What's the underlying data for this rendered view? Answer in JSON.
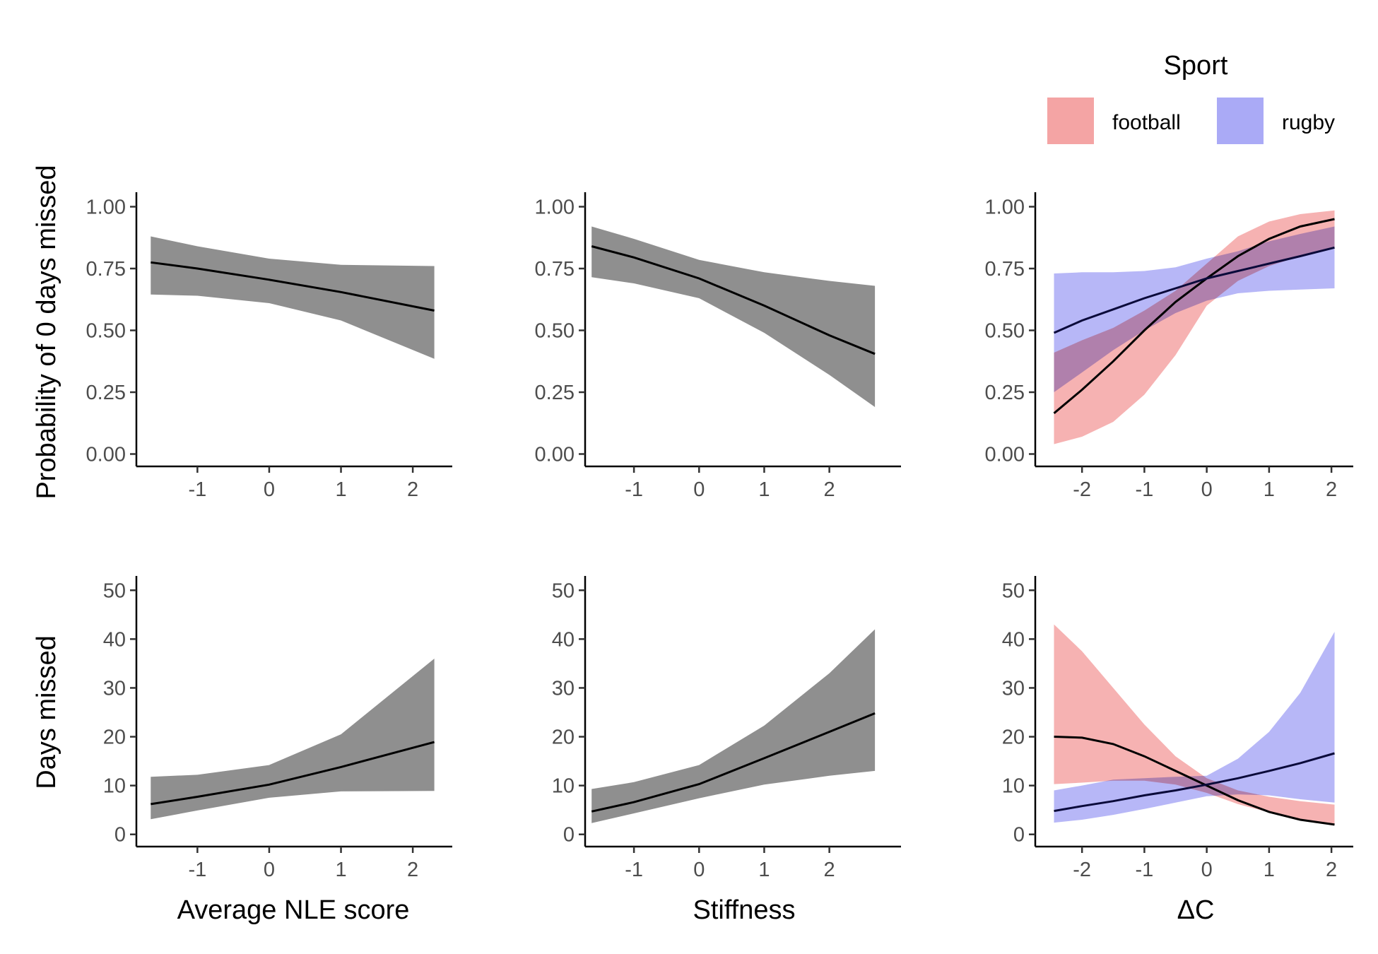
{
  "legend": {
    "title": "Sport",
    "items": [
      {
        "label": "football",
        "color": "#f08080"
      },
      {
        "label": "rugby",
        "color": "#7f7fff"
      }
    ]
  },
  "row_labels": [
    "Probability of 0 days missed",
    "Days missed"
  ],
  "col_labels": [
    "Average NLE score",
    "Stiffness",
    "ΔC"
  ],
  "colors": {
    "single_band": "#8f8f8f",
    "line": "#000000",
    "football_band": "#f4a4a4",
    "rugby_band": "#aaaaf6",
    "overlap": "#a36ec0"
  },
  "chart_data": [
    {
      "type": "line",
      "row": 0,
      "col": 0,
      "xlabel": "",
      "ylabel": "Probability of 0 days missed",
      "xlim": [
        -1.85,
        2.55
      ],
      "ylim": [
        -0.05,
        1.05
      ],
      "xticks": [
        -1,
        0,
        1,
        2
      ],
      "yticks": [
        0.0,
        0.25,
        0.5,
        0.75,
        1.0
      ],
      "ytick_labels": [
        "0.00",
        "0.25",
        "0.50",
        "0.75",
        "1.00"
      ],
      "series": [
        {
          "x": [
            -1.65,
            -1.0,
            0.0,
            1.0,
            2.3
          ],
          "y": [
            0.775,
            0.75,
            0.705,
            0.655,
            0.58
          ],
          "lower": [
            0.645,
            0.64,
            0.61,
            0.54,
            0.385
          ],
          "upper": [
            0.88,
            0.84,
            0.79,
            0.765,
            0.76
          ]
        }
      ]
    },
    {
      "type": "line",
      "row": 0,
      "col": 1,
      "xlabel": "",
      "ylabel": "",
      "xlim": [
        -1.75,
        3.1
      ],
      "ylim": [
        -0.05,
        1.05
      ],
      "xticks": [
        -1,
        0,
        1,
        2
      ],
      "yticks": [
        0.0,
        0.25,
        0.5,
        0.75,
        1.0
      ],
      "ytick_labels": [
        "0.00",
        "0.25",
        "0.50",
        "0.75",
        "1.00"
      ],
      "series": [
        {
          "x": [
            -1.65,
            -1.0,
            0.0,
            1.0,
            2.0,
            2.7
          ],
          "y": [
            0.84,
            0.795,
            0.71,
            0.6,
            0.48,
            0.405
          ],
          "lower": [
            0.715,
            0.69,
            0.63,
            0.49,
            0.32,
            0.19
          ],
          "upper": [
            0.92,
            0.87,
            0.785,
            0.735,
            0.7,
            0.68
          ]
        }
      ]
    },
    {
      "type": "line",
      "row": 0,
      "col": 2,
      "xlabel": "",
      "ylabel": "",
      "xlim": [
        -2.75,
        2.35
      ],
      "ylim": [
        -0.05,
        1.05
      ],
      "xticks": [
        -2,
        -1,
        0,
        1,
        2
      ],
      "yticks": [
        0.0,
        0.25,
        0.5,
        0.75,
        1.0
      ],
      "ytick_labels": [
        "0.00",
        "0.25",
        "0.50",
        "0.75",
        "1.00"
      ],
      "series": [
        {
          "name": "football",
          "x": [
            -2.45,
            -2.0,
            -1.5,
            -1.0,
            -0.5,
            0.0,
            0.5,
            1.0,
            1.5,
            2.05
          ],
          "y": [
            0.165,
            0.26,
            0.375,
            0.5,
            0.615,
            0.71,
            0.8,
            0.87,
            0.92,
            0.95
          ],
          "lower": [
            0.04,
            0.07,
            0.13,
            0.24,
            0.4,
            0.6,
            0.7,
            0.76,
            0.8,
            0.83
          ],
          "upper": [
            0.41,
            0.46,
            0.51,
            0.58,
            0.66,
            0.77,
            0.88,
            0.94,
            0.97,
            0.985
          ]
        },
        {
          "name": "rugby",
          "x": [
            -2.45,
            -2.0,
            -1.5,
            -1.0,
            -0.5,
            0.0,
            0.5,
            1.0,
            1.5,
            2.05
          ],
          "y": [
            0.49,
            0.54,
            0.585,
            0.63,
            0.67,
            0.71,
            0.74,
            0.77,
            0.8,
            0.835
          ],
          "lower": [
            0.25,
            0.33,
            0.42,
            0.5,
            0.57,
            0.62,
            0.65,
            0.66,
            0.665,
            0.67
          ],
          "upper": [
            0.73,
            0.735,
            0.735,
            0.74,
            0.755,
            0.79,
            0.82,
            0.86,
            0.89,
            0.92
          ]
        }
      ]
    },
    {
      "type": "line",
      "row": 1,
      "col": 0,
      "xlabel": "Average NLE score",
      "ylabel": "Days missed",
      "xlim": [
        -1.85,
        2.55
      ],
      "ylim": [
        -2.5,
        52.5
      ],
      "xticks": [
        -1,
        0,
        1,
        2
      ],
      "yticks": [
        0,
        10,
        20,
        30,
        40,
        50
      ],
      "ytick_labels": [
        "0",
        "10",
        "20",
        "30",
        "40",
        "50"
      ],
      "series": [
        {
          "x": [
            -1.65,
            -1.0,
            0.0,
            1.0,
            2.3
          ],
          "y": [
            6.2,
            7.7,
            10.2,
            13.8,
            18.9
          ],
          "lower": [
            3.1,
            4.9,
            7.5,
            8.8,
            8.9
          ],
          "upper": [
            11.8,
            12.2,
            14.2,
            20.5,
            36.0
          ]
        }
      ]
    },
    {
      "type": "line",
      "row": 1,
      "col": 1,
      "xlabel": "Stiffness",
      "ylabel": "",
      "xlim": [
        -1.75,
        3.1
      ],
      "ylim": [
        -2.5,
        52.5
      ],
      "xticks": [
        -1,
        0,
        1,
        2
      ],
      "yticks": [
        0,
        10,
        20,
        30,
        40,
        50
      ],
      "ytick_labels": [
        "0",
        "10",
        "20",
        "30",
        "40",
        "50"
      ],
      "series": [
        {
          "x": [
            -1.65,
            -1.0,
            0.0,
            1.0,
            2.0,
            2.7
          ],
          "y": [
            4.7,
            6.6,
            10.3,
            15.6,
            21.0,
            24.8
          ],
          "lower": [
            2.3,
            4.3,
            7.4,
            10.2,
            12.0,
            13.0
          ],
          "upper": [
            9.3,
            10.7,
            14.2,
            22.3,
            33.0,
            42.0
          ]
        }
      ]
    },
    {
      "type": "line",
      "row": 1,
      "col": 2,
      "xlabel": "ΔC",
      "ylabel": "",
      "xlim": [
        -2.75,
        2.35
      ],
      "ylim": [
        -2.5,
        52.5
      ],
      "xticks": [
        -2,
        -1,
        0,
        1,
        2
      ],
      "yticks": [
        0,
        10,
        20,
        30,
        40,
        50
      ],
      "ytick_labels": [
        "0",
        "10",
        "20",
        "30",
        "40",
        "50"
      ],
      "series": [
        {
          "name": "football",
          "x": [
            -2.45,
            -2.0,
            -1.5,
            -1.0,
            -0.5,
            0.0,
            0.5,
            1.0,
            1.5,
            2.05
          ],
          "y": [
            20.0,
            19.8,
            18.5,
            16.0,
            13.0,
            10.0,
            7.0,
            4.6,
            3.0,
            2.0
          ],
          "lower": [
            10.3,
            10.6,
            11.0,
            11.0,
            10.2,
            8.5,
            6.2,
            4.5,
            3.0,
            2.0
          ],
          "upper": [
            43.0,
            37.5,
            30.0,
            22.5,
            16.0,
            11.5,
            9.0,
            7.7,
            6.8,
            6.1
          ]
        },
        {
          "name": "rugby",
          "x": [
            -2.45,
            -2.0,
            -1.5,
            -1.0,
            -0.5,
            0.0,
            0.5,
            1.0,
            1.5,
            2.05
          ],
          "y": [
            4.8,
            5.8,
            6.8,
            8.0,
            9.0,
            10.2,
            11.5,
            13.0,
            14.6,
            16.6
          ],
          "lower": [
            2.4,
            3.0,
            4.0,
            5.2,
            6.5,
            7.8,
            8.2,
            8.0,
            7.2,
            6.5
          ],
          "upper": [
            9.0,
            10.0,
            11.2,
            11.5,
            11.8,
            12.0,
            15.5,
            21.0,
            29.0,
            41.5
          ]
        }
      ]
    }
  ]
}
